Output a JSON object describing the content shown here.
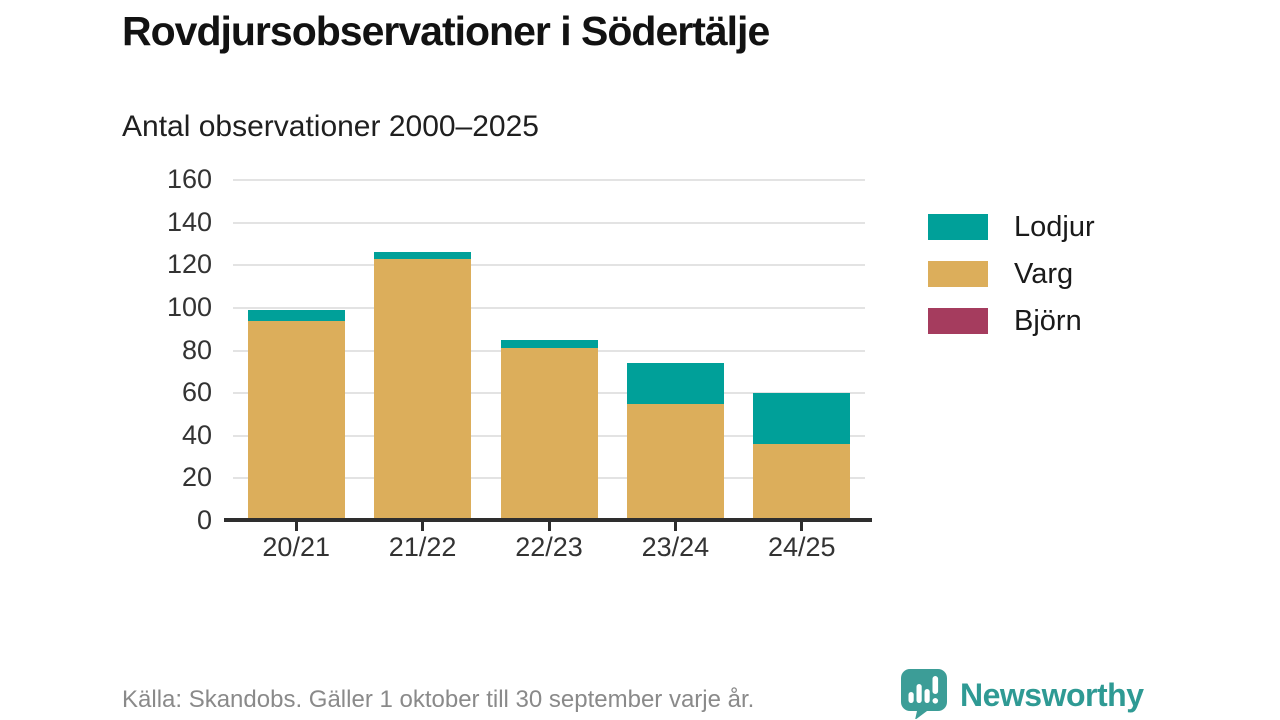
{
  "header": {
    "title": "Rovdjursobservationer i Södertälje",
    "subtitle": "Antal observationer 2000–2025"
  },
  "footer": {
    "source": "Källa: Skandobs. Gäller 1 oktober till 30 september varje år."
  },
  "brand": {
    "name": "Newsworthy",
    "color": "#2f9a94",
    "logo_icon": "bar-chart-speech-bubble-icon"
  },
  "colors": {
    "lodjur": "#00a099",
    "varg": "#dcae5b",
    "bjorn": "#a53c5e",
    "gridline": "#e3e3e3",
    "axis": "#2e2e2e",
    "text_muted": "#8a8a8a"
  },
  "chart_data": {
    "type": "bar",
    "stacked": true,
    "title": "Rovdjursobservationer i Södertälje",
    "subtitle": "Antal observationer 2000–2025",
    "categories": [
      "20/21",
      "21/22",
      "22/23",
      "23/24",
      "24/25"
    ],
    "series": [
      {
        "name": "Lodjur",
        "color": "#00a099",
        "values": [
          5,
          3,
          4,
          19,
          24
        ]
      },
      {
        "name": "Varg",
        "color": "#dcae5b",
        "values": [
          94,
          123,
          81,
          55,
          35
        ]
      },
      {
        "name": "Björn",
        "color": "#a53c5e",
        "values": [
          0,
          0,
          0,
          0,
          1
        ]
      }
    ],
    "stack_order_bottom_to_top": [
      "Björn",
      "Varg",
      "Lodjur"
    ],
    "totals": [
      99,
      126,
      85,
      74,
      60
    ],
    "xlabel": "",
    "ylabel": "",
    "ylim": [
      0,
      160
    ],
    "ytick_step": 20,
    "yticks": [
      0,
      20,
      40,
      60,
      80,
      100,
      120,
      140,
      160
    ],
    "grid": true,
    "legend_position": "right"
  }
}
